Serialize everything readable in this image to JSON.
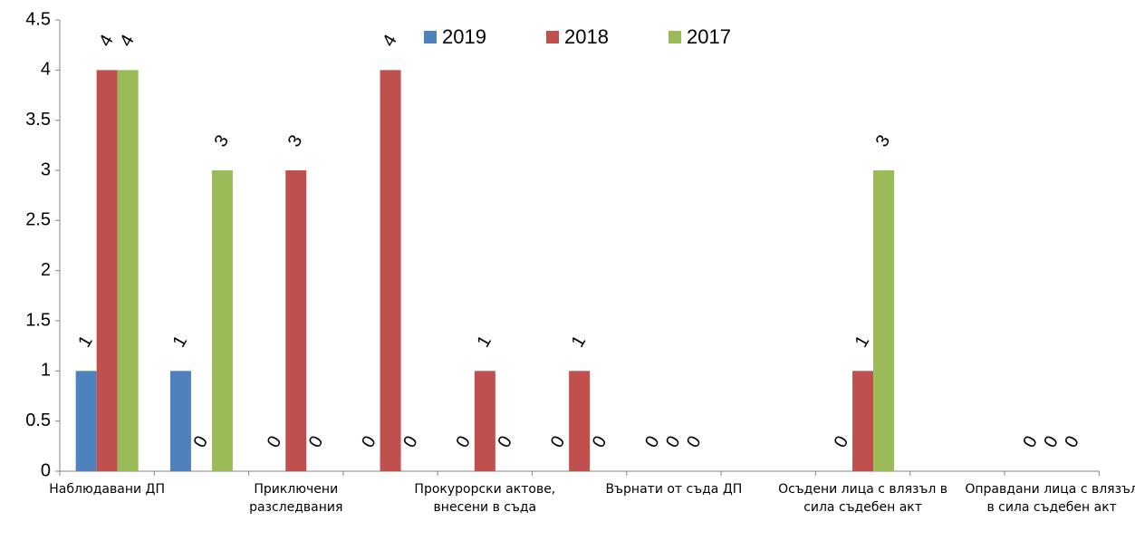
{
  "chart_data": {
    "type": "bar",
    "categories": [
      "Наблюдавани ДП",
      null,
      "Приключени разследвания",
      null,
      "Прокурорски актове, внесени в съда",
      null,
      "Върнати от съда ДП",
      null,
      "Осъдени лица с влязъл в сила съдебен акт",
      null,
      "Оправдани лица с влязъл в сила съдебен акт"
    ],
    "series": [
      {
        "name": "2019",
        "color": "#4f81bd",
        "values": [
          1,
          1,
          0,
          0,
          0,
          0,
          0,
          null,
          0,
          null,
          0
        ]
      },
      {
        "name": "2018",
        "color": "#c0504d",
        "values": [
          4,
          0,
          3,
          4,
          1,
          1,
          0,
          null,
          1,
          null,
          0
        ]
      },
      {
        "name": "2017",
        "color": "#9bbb59",
        "values": [
          4,
          3,
          0,
          0,
          0,
          0,
          0,
          null,
          3,
          null,
          0
        ]
      }
    ],
    "ylim": [
      0,
      4.5
    ],
    "yticks": [
      0,
      0.5,
      1,
      1.5,
      2,
      2.5,
      3,
      3.5,
      4,
      4.5
    ],
    "grid": false,
    "legend": "top"
  }
}
